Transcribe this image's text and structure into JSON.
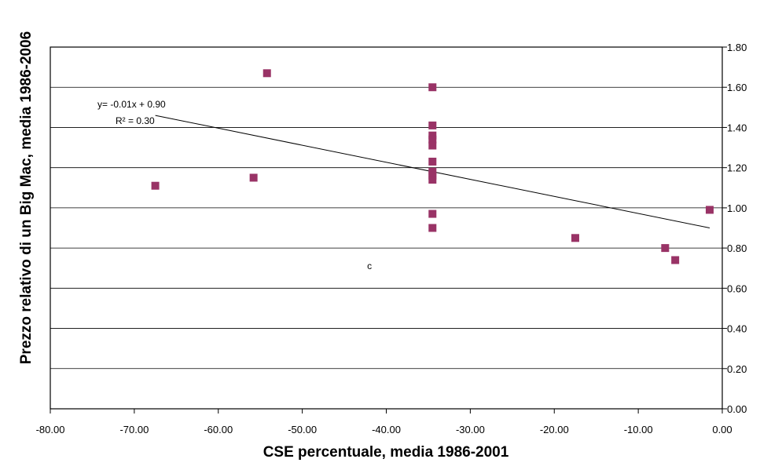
{
  "chart_data": {
    "type": "scatter",
    "xlabel": "CSE percentuale, media 1986-2001",
    "ylabel": "Prezzo relativo di un Big Mac, media 1986-2006",
    "xlim": [
      -80,
      0
    ],
    "ylim": [
      0,
      1.8
    ],
    "x_ticks": [
      "-80.00",
      "-70.00",
      "-60.00",
      "-50.00",
      "-40.00",
      "-30.00",
      "-20.00",
      "-10.00",
      "0.00"
    ],
    "y_ticks": [
      "0.00",
      "0.20",
      "0.40",
      "0.60",
      "0.80",
      "1.00",
      "1.20",
      "1.40",
      "1.60",
      "1.80"
    ],
    "y_axis_side": "right",
    "grid": "horizontal",
    "marker_color": "#993366",
    "points": [
      {
        "x": -67.5,
        "y": 1.11
      },
      {
        "x": -55.8,
        "y": 1.15
      },
      {
        "x": -54.2,
        "y": 1.67
      },
      {
        "x": -34.5,
        "y": 1.6
      },
      {
        "x": -34.5,
        "y": 1.41
      },
      {
        "x": -34.5,
        "y": 1.36
      },
      {
        "x": -34.5,
        "y": 1.34
      },
      {
        "x": -34.5,
        "y": 1.31
      },
      {
        "x": -34.5,
        "y": 1.23
      },
      {
        "x": -34.5,
        "y": 1.18
      },
      {
        "x": -34.5,
        "y": 1.16
      },
      {
        "x": -34.5,
        "y": 1.14
      },
      {
        "x": -34.5,
        "y": 0.97
      },
      {
        "x": -34.5,
        "y": 0.9
      },
      {
        "x": -17.5,
        "y": 0.85
      },
      {
        "x": -6.8,
        "y": 0.8
      },
      {
        "x": -5.6,
        "y": 0.74
      },
      {
        "x": -1.5,
        "y": 0.99
      }
    ],
    "trendline": {
      "x1": -67.5,
      "y1": 1.46,
      "x2": -1.5,
      "y2": 0.9,
      "equation": "y= -0.01x + 0.90",
      "r2": "R² = 0.30"
    },
    "stray_label": {
      "text": "c",
      "x": -42,
      "y": 0.71
    }
  }
}
